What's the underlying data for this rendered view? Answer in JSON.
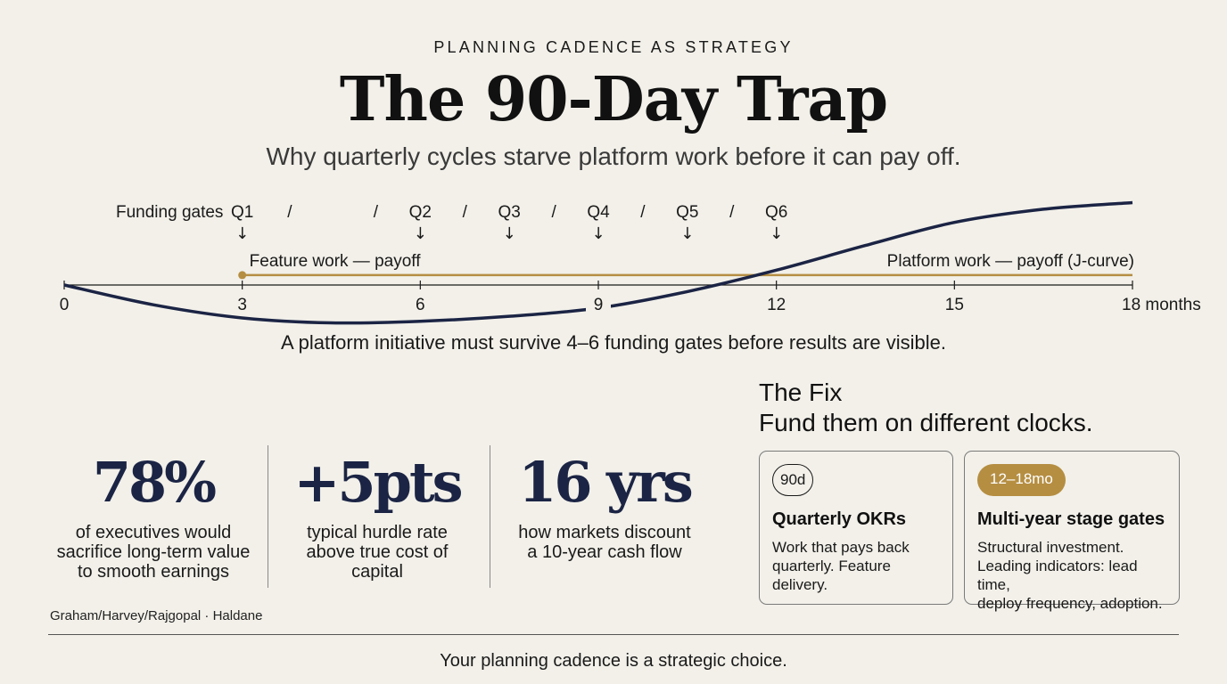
{
  "header": {
    "kicker": "PLANNING CADENCE AS STRATEGY",
    "title": "The 90-Day Trap",
    "subtitle": "Why quarterly cycles starve platform work before it can pay off."
  },
  "chart_data": {
    "type": "line",
    "xlabel": "",
    "ylabel": "",
    "xlim": [
      0,
      18
    ],
    "x_ticks": [
      "0",
      "3",
      "6",
      "9",
      "12",
      "15",
      "18 months"
    ],
    "x_tick_values": [
      0,
      3,
      6,
      9,
      12,
      15,
      18
    ],
    "gates_label": "Funding gates",
    "gates": [
      {
        "label": "Q1",
        "month": 3
      },
      {
        "label": "Q2",
        "month": 6
      },
      {
        "label": "Q3",
        "month": 7.5
      },
      {
        "label": "Q4",
        "month": 9
      },
      {
        "label": "Q5",
        "month": 10.5
      },
      {
        "label": "Q6",
        "month": 12
      }
    ],
    "gate_separators": [
      "/",
      "/",
      "/",
      "/",
      "/",
      "/",
      "/"
    ],
    "series": [
      {
        "name": "Feature work — payoff",
        "color": "#b58e42",
        "x": [
          3,
          18
        ],
        "y": [
          0.3,
          0.3
        ]
      },
      {
        "name": "Platform work — payoff (J-curve)",
        "color": "#1b2444",
        "x": [
          0,
          1.5,
          3,
          4.5,
          6,
          7.5,
          9,
          10.5,
          12,
          13.5,
          15,
          16.5,
          18
        ],
        "y": [
          0,
          -0.6,
          -1.0,
          -1.15,
          -1.1,
          -0.95,
          -0.7,
          -0.2,
          0.45,
          1.2,
          1.9,
          2.3,
          2.5
        ]
      }
    ],
    "note": "A platform initiative must survive 4–6 funding gates before results are visible."
  },
  "stats": [
    {
      "value": "78%",
      "desc": [
        "of executives would",
        "sacrifice long-term value",
        "to smooth earnings"
      ]
    },
    {
      "value": "+5pts",
      "desc": [
        "typical hurdle rate",
        "above true cost of",
        "capital"
      ]
    },
    {
      "value": "16 yrs",
      "desc": [
        "how markets discount",
        "a 10-year cash flow"
      ]
    }
  ],
  "sources": "Graham/Harvey/Rajgopal · Haldane",
  "fix": {
    "heading": "The Fix",
    "subheading": "Fund them on different clocks.",
    "cards": [
      {
        "badge": "90d",
        "title": "Quarterly OKRs",
        "body": [
          "Work that pays back",
          "quarterly. Feature",
          "delivery."
        ]
      },
      {
        "badge": "12–18mo",
        "title": "Multi-year stage gates",
        "body": [
          "Structural investment.",
          "Leading indicators: lead time,",
          "deploy frequency, adoption."
        ]
      }
    ]
  },
  "footer": "Your planning cadence is a strategic choice.",
  "colors": {
    "background": "#f2f0e9",
    "navy": "#1b2444",
    "gold": "#b58e42"
  }
}
